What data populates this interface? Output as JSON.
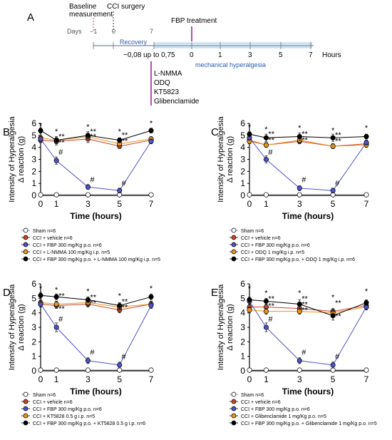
{
  "timeline": {
    "panel_letter": "A",
    "baseline_label_line1": "Baseline",
    "baseline_label_line2": "measurement",
    "surgery_label": "CCI surgery",
    "days_label": "Days",
    "day_ticks": [
      "−1",
      "0",
      "7"
    ],
    "recovery_label": "Recovery",
    "treatment_label": "FBP treatment",
    "hour_ticks": [
      "−0,08 up to 0,75",
      "0",
      "1",
      "3",
      "5",
      "7"
    ],
    "hours_label": "Hours",
    "hyperalgesia_label": "mechanical hyperalgesia",
    "drugs": [
      "L-NMMA",
      "ODQ",
      "KT5823",
      "Glibenclamide"
    ],
    "colors": {
      "timeline": "#7a8aa0",
      "treatment": "#b03aa8",
      "phase_text": "#2a5db0",
      "band": "#d8ecf7"
    }
  },
  "series_colors": {
    "sham": "#ffffff",
    "vehicle": "#c8442a",
    "fbp": "#4f52c8",
    "inhibitor": "#e8951e",
    "combo": "#000000"
  },
  "chart_data": [
    {
      "type": "line",
      "panel": "B",
      "ylabel_line1": "Intensity of Hyperalgesia",
      "ylabel_line2": "Δ reaction (g)",
      "xlabel": "Time (hours)",
      "x": [
        0,
        1,
        3,
        5,
        7
      ],
      "xticks": [
        "0",
        "1",
        "3",
        "5",
        "7"
      ],
      "yticks": [
        "0",
        "1",
        "2",
        "3",
        "4",
        "5",
        "6"
      ],
      "ylim": [
        0,
        6
      ],
      "series": [
        {
          "name": "Sham n=6",
          "values": [
            0.05,
            0.05,
            0.05,
            0.05,
            0.05
          ],
          "err": [
            0.05,
            0.05,
            0.05,
            0.05,
            0.05
          ]
        },
        {
          "name": "CCI + vehicle n=6",
          "values": [
            4.6,
            4.5,
            4.7,
            4.1,
            4.6
          ],
          "err": [
            0.2,
            0.3,
            0.3,
            0.2,
            0.2
          ]
        },
        {
          "name": "CCI + FBP 300 mg/Kg p.o. n=6",
          "values": [
            4.7,
            2.9,
            0.7,
            0.4,
            4.5
          ],
          "err": [
            0.2,
            0.3,
            0.2,
            0.2,
            0.2
          ]
        },
        {
          "name": "CCI + L-NMMA 100 mg/Kg i.p. n=5",
          "values": [
            4.8,
            4.6,
            4.9,
            4.3,
            4.7
          ],
          "err": [
            0.2,
            0.2,
            0.2,
            0.2,
            0.2
          ]
        },
        {
          "name": "CCI + FBP 300 mg/Kg p.o. + L-NMMA 100 mg/Kg i.p. n=5",
          "values": [
            5.4,
            4.6,
            5.0,
            4.6,
            5.4
          ],
          "err": [
            0.2,
            0.3,
            0.3,
            0.2,
            0.2
          ]
        }
      ],
      "annotations": [
        {
          "text": "*",
          "x": 0,
          "y": 5.6
        },
        {
          "text": "*",
          "x": 1,
          "y": 5.1
        },
        {
          "text": "**",
          "x": 1,
          "y": 4.7
        },
        {
          "text": "**",
          "x": 1,
          "y": 4.2
        },
        {
          "text": "#",
          "x": 1,
          "y": 3.4
        },
        {
          "text": "*",
          "x": 3,
          "y": 5.5
        },
        {
          "text": "**",
          "x": 3,
          "y": 5.1
        },
        {
          "text": "**",
          "x": 3,
          "y": 4.7
        },
        {
          "text": "*",
          "x": 5,
          "y": 5.1
        },
        {
          "text": "**",
          "x": 5,
          "y": 4.8
        },
        {
          "text": "**",
          "x": 5,
          "y": 4.3
        },
        {
          "text": "*",
          "x": 7,
          "y": 5.8
        },
        {
          "text": "#",
          "x": 3,
          "y": 1.1
        },
        {
          "text": "#",
          "x": 5,
          "y": 0.8
        }
      ]
    },
    {
      "type": "line",
      "panel": "C",
      "ylabel_line1": "Intensity of Hyperalgesia",
      "ylabel_line2": "Δ reaction (g)",
      "xlabel": "Time (hours)",
      "x": [
        0,
        1,
        3,
        5,
        7
      ],
      "xticks": [
        "0",
        "1",
        "3",
        "5",
        "7"
      ],
      "yticks": [
        "0",
        "1",
        "2",
        "3",
        "4",
        "5",
        "6"
      ],
      "ylim": [
        0,
        6
      ],
      "series": [
        {
          "name": "Sham n=6",
          "values": [
            0.05,
            0.05,
            0.05,
            0.05,
            0.05
          ],
          "err": [
            0.05,
            0.05,
            0.05,
            0.05,
            0.05
          ]
        },
        {
          "name": "CCI + vehicle n=6",
          "values": [
            4.6,
            4.2,
            4.5,
            4.1,
            4.3
          ],
          "err": [
            0.2,
            0.2,
            0.2,
            0.2,
            0.2
          ]
        },
        {
          "name": "CCI + FBP 300 mg/Kg p.o. n=6",
          "values": [
            4.8,
            3.0,
            0.6,
            0.4,
            4.4
          ],
          "err": [
            0.2,
            0.3,
            0.2,
            0.2,
            0.2
          ]
        },
        {
          "name": "CCI + ODQ 1 mg/Kg i.p. n=5",
          "values": [
            4.5,
            4.2,
            4.6,
            4.1,
            4.2
          ],
          "err": [
            0.2,
            0.2,
            0.2,
            0.2,
            0.2
          ]
        },
        {
          "name": "CCI + FBP 300 mg/Kg p.o. + ODQ 1 mg/Kg i.p. n=6",
          "values": [
            5.1,
            4.8,
            4.9,
            4.8,
            4.9
          ],
          "err": [
            0.2,
            0.3,
            0.3,
            0.3,
            0.2
          ]
        }
      ],
      "annotations": [
        {
          "text": "*",
          "x": 0,
          "y": 5.5
        },
        {
          "text": "*",
          "x": 1,
          "y": 5.3
        },
        {
          "text": "**",
          "x": 1,
          "y": 4.9
        },
        {
          "text": "**",
          "x": 1,
          "y": 4.4
        },
        {
          "text": "#",
          "x": 1,
          "y": 3.4
        },
        {
          "text": "*",
          "x": 3,
          "y": 5.4
        },
        {
          "text": "**",
          "x": 3,
          "y": 4.9
        },
        {
          "text": "**",
          "x": 3,
          "y": 4.4
        },
        {
          "text": "*",
          "x": 5,
          "y": 5.2
        },
        {
          "text": "**",
          "x": 5,
          "y": 4.8
        },
        {
          "text": "**",
          "x": 5,
          "y": 4.3
        },
        {
          "text": "*",
          "x": 7,
          "y": 5.4
        },
        {
          "text": "#",
          "x": 3,
          "y": 1.1
        },
        {
          "text": "#",
          "x": 5,
          "y": 0.8
        }
      ]
    },
    {
      "type": "line",
      "panel": "D",
      "ylabel_line1": "Intensity of Hyperalgesia",
      "ylabel_line2": "Δ reaction (g)",
      "xlabel": "Time (hours)",
      "x": [
        0,
        1,
        3,
        5,
        7
      ],
      "xticks": [
        "0",
        "1",
        "3",
        "5",
        "7"
      ],
      "yticks": [
        "0",
        "1",
        "2",
        "3",
        "4",
        "5",
        "6"
      ],
      "ylim": [
        0,
        6
      ],
      "series": [
        {
          "name": "Sham n=6",
          "values": [
            0.05,
            0.05,
            0.05,
            0.05,
            0.05
          ],
          "err": [
            0.05,
            0.05,
            0.05,
            0.05,
            0.05
          ]
        },
        {
          "name": "CCI + vehicle n=6",
          "values": [
            4.6,
            4.5,
            4.6,
            4.2,
            4.6
          ],
          "err": [
            0.2,
            0.2,
            0.2,
            0.2,
            0.2
          ]
        },
        {
          "name": "CCI + FBP 300 mg/Kg p.o. n=6",
          "values": [
            4.6,
            3.0,
            0.7,
            0.4,
            4.5
          ],
          "err": [
            0.2,
            0.3,
            0.2,
            0.2,
            0.2
          ]
        },
        {
          "name": "CCI + KT5828 0.5 g i.p. n=5",
          "values": [
            4.7,
            4.6,
            4.7,
            4.4,
            4.6
          ],
          "err": [
            0.2,
            0.2,
            0.2,
            0.2,
            0.2
          ]
        },
        {
          "name": "CCI + FBP 300 mg/Kg p.o. + KT5828 0.5 g i.p. n=6",
          "values": [
            5.2,
            5.1,
            4.9,
            4.5,
            5.1
          ],
          "err": [
            0.2,
            0.2,
            0.2,
            0.2,
            0.2
          ]
        }
      ],
      "annotations": [
        {
          "text": "*",
          "x": 0,
          "y": 5.5
        },
        {
          "text": "*",
          "x": 1,
          "y": 5.4
        },
        {
          "text": "**",
          "x": 1,
          "y": 5.0
        },
        {
          "text": "**",
          "x": 1,
          "y": 4.1
        },
        {
          "text": "#",
          "x": 1,
          "y": 3.4
        },
        {
          "text": "*",
          "x": 3,
          "y": 5.3
        },
        {
          "text": "**",
          "x": 3,
          "y": 4.9
        },
        {
          "text": "**",
          "x": 3,
          "y": 4.5
        },
        {
          "text": "*",
          "x": 5,
          "y": 5.0
        },
        {
          "text": "**",
          "x": 5,
          "y": 4.6
        },
        {
          "text": "**",
          "x": 5,
          "y": 4.2
        },
        {
          "text": "*",
          "x": 7,
          "y": 5.5
        },
        {
          "text": "#",
          "x": 3,
          "y": 1.1
        },
        {
          "text": "#",
          "x": 5,
          "y": 0.8
        }
      ]
    },
    {
      "type": "line",
      "panel": "E",
      "ylabel_line1": "Intensity of Hyperalgesia",
      "ylabel_line2": "Δ reaction (g)",
      "xlabel": "Time (hours)",
      "x": [
        0,
        1,
        3,
        5,
        7
      ],
      "xticks": [
        "0",
        "1",
        "3",
        "5",
        "7"
      ],
      "yticks": [
        "0",
        "1",
        "2",
        "3",
        "4",
        "5",
        "6"
      ],
      "ylim": [
        0,
        6
      ],
      "series": [
        {
          "name": "Sham n=6",
          "values": [
            0.05,
            0.05,
            0.05,
            0.05,
            0.05
          ],
          "err": [
            0.05,
            0.05,
            0.05,
            0.05,
            0.05
          ]
        },
        {
          "name": "CCI + vehicle n=6",
          "values": [
            4.4,
            4.4,
            4.3,
            4.1,
            4.5
          ],
          "err": [
            0.2,
            0.2,
            0.2,
            0.2,
            0.2
          ]
        },
        {
          "name": "CCI + FBP 300 mg/Kg p.o. n=6",
          "values": [
            4.8,
            3.0,
            0.7,
            0.4,
            4.4
          ],
          "err": [
            0.2,
            0.3,
            0.2,
            0.2,
            0.2
          ]
        },
        {
          "name": "CCI + Glibenclamide 1 mg/Kg p.o. n=5",
          "values": [
            4.2,
            4.1,
            4.1,
            4.0,
            4.4
          ],
          "err": [
            0.2,
            0.2,
            0.2,
            0.2,
            0.2
          ]
        },
        {
          "name": "CCI + FBP 300 mg/Kg p.o. + Glibenclamide 1 mg/Kg p.o. n=5",
          "values": [
            4.9,
            4.8,
            4.6,
            3.8,
            4.7
          ],
          "err": [
            0.2,
            0.2,
            0.3,
            0.3,
            0.2
          ]
        }
      ],
      "annotations": [
        {
          "text": "*",
          "x": 0,
          "y": 5.5
        },
        {
          "text": "*",
          "x": 1,
          "y": 5.2
        },
        {
          "text": "**",
          "x": 1,
          "y": 4.8
        },
        {
          "text": "**",
          "x": 1,
          "y": 4.3
        },
        {
          "text": "#",
          "x": 1,
          "y": 3.4
        },
        {
          "text": "*",
          "x": 3,
          "y": 5.2
        },
        {
          "text": "**",
          "x": 3,
          "y": 4.8
        },
        {
          "text": "**",
          "x": 3,
          "y": 4.4
        },
        {
          "text": "**",
          "x": 3,
          "y": 4.0
        },
        {
          "text": "*",
          "x": 5,
          "y": 4.9
        },
        {
          "text": "**",
          "x": 5,
          "y": 4.5
        },
        {
          "text": "**",
          "x": 5,
          "y": 3.6
        },
        {
          "text": "*",
          "x": 7,
          "y": 5.3
        },
        {
          "text": "#",
          "x": 3,
          "y": 1.1
        },
        {
          "text": "#",
          "x": 5,
          "y": 0.8
        }
      ]
    }
  ]
}
